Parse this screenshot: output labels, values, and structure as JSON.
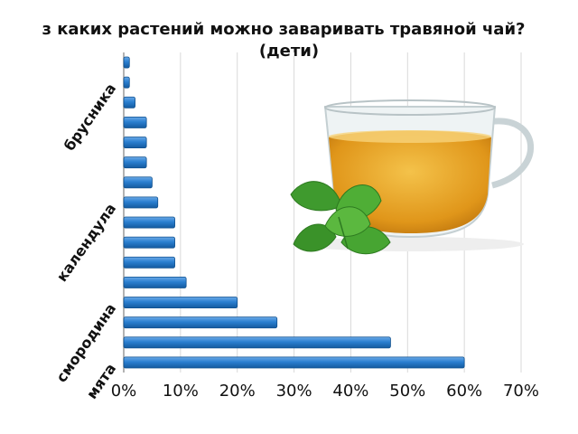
{
  "chart_data": {
    "type": "bar",
    "orientation": "horizontal",
    "title_lines": [
      "з каких растений можно заваривать травяной чай?",
      "(дети)"
    ],
    "xlim": [
      0,
      70
    ],
    "x_ticks": [
      "0%",
      "10%",
      "20%",
      "30%",
      "40%",
      "50%",
      "60%",
      "70%"
    ],
    "grid": "vertical",
    "visible_category_labels": [
      "мята",
      "смородина",
      "календула",
      "брусника"
    ],
    "values": [
      60,
      47,
      27,
      20,
      11,
      9,
      9,
      9,
      6,
      5,
      4,
      4,
      4,
      2,
      1,
      1
    ],
    "bar_color": "#1f6fbf",
    "decoration": "tea-cup-with-mint-image"
  }
}
